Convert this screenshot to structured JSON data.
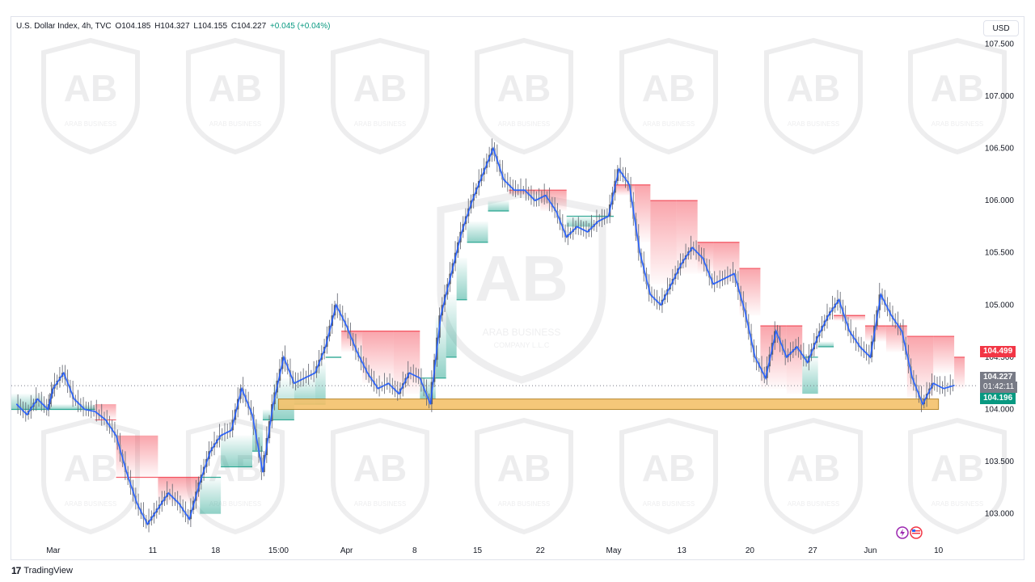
{
  "header": {
    "symbol": "U.S. Dollar Index, 4h, TVC",
    "open": "O104.185",
    "high": "H104.327",
    "low": "L104.155",
    "close": "C104.227",
    "change": "+0.045 (+0.04%)"
  },
  "currency_button": "USD",
  "watermark": {
    "name": "ARAB BUSINESS",
    "sub": "COMPANY L.L.C",
    "monogram": "AB"
  },
  "footer": {
    "logo": "17",
    "brand": "TradingView"
  },
  "price_tags": {
    "resistance": {
      "label": "104.499",
      "color": "#f23645"
    },
    "last_price": {
      "label": "104.227",
      "countdown": "01:42:11",
      "color": "#787b86"
    },
    "support": {
      "label": "104.196",
      "color": "#089981"
    }
  },
  "colors": {
    "up": "#089981",
    "down": "#f23645",
    "line": "#2962ff",
    "zone_fill": "#f5c26b",
    "zone_stroke": "#b07d1a",
    "wick": "#5d606b"
  },
  "chart_data": {
    "type": "line",
    "title": "U.S. Dollar Index, 4h, TVC",
    "y_scale": {
      "min": 102.75,
      "max": 107.75
    },
    "y_ticks": [
      "107.500",
      "107.000",
      "106.500",
      "106.000",
      "105.500",
      "105.000",
      "104.500",
      "104.000",
      "103.500",
      "103.000"
    ],
    "y_tick_values": [
      107.5,
      107.0,
      106.5,
      106.0,
      105.5,
      105.0,
      104.5,
      104.0,
      103.5,
      103.0
    ],
    "x_ticks": [
      "Mar",
      "11",
      "18",
      "15:00",
      "Apr",
      "8",
      "15",
      "22",
      "May",
      "13",
      "20",
      "27",
      "Jun",
      "10"
    ],
    "x_tick_index": [
      0,
      38,
      62,
      86,
      112,
      138,
      162,
      186,
      214,
      240,
      266,
      290,
      312,
      338
    ],
    "x_range": [
      -16,
      352
    ],
    "series": [
      {
        "price": [
          [
            -14,
            104.05
          ],
          [
            -10,
            103.95
          ],
          [
            -6,
            104.1
          ],
          [
            -2,
            104.0
          ],
          [
            0,
            104.2
          ],
          [
            4,
            104.35
          ],
          [
            8,
            104.1
          ],
          [
            12,
            104.0
          ],
          [
            16,
            103.98
          ],
          [
            20,
            103.9
          ],
          [
            24,
            103.75
          ],
          [
            28,
            103.4
          ],
          [
            32,
            103.1
          ],
          [
            36,
            102.9
          ],
          [
            40,
            103.05
          ],
          [
            44,
            103.2
          ],
          [
            48,
            103.1
          ],
          [
            52,
            102.95
          ],
          [
            56,
            103.3
          ],
          [
            60,
            103.6
          ],
          [
            64,
            103.75
          ],
          [
            68,
            103.8
          ],
          [
            72,
            104.2
          ],
          [
            76,
            103.95
          ],
          [
            80,
            103.4
          ],
          [
            84,
            104.05
          ],
          [
            88,
            104.5
          ],
          [
            92,
            104.25
          ],
          [
            96,
            104.3
          ],
          [
            100,
            104.35
          ],
          [
            104,
            104.6
          ],
          [
            108,
            105.0
          ],
          [
            112,
            104.8
          ],
          [
            116,
            104.55
          ],
          [
            120,
            104.35
          ],
          [
            124,
            104.2
          ],
          [
            128,
            104.25
          ],
          [
            132,
            104.15
          ],
          [
            136,
            104.35
          ],
          [
            140,
            104.3
          ],
          [
            144,
            104.05
          ],
          [
            148,
            104.9
          ],
          [
            152,
            105.3
          ],
          [
            156,
            105.7
          ],
          [
            160,
            106.0
          ],
          [
            164,
            106.25
          ],
          [
            168,
            106.5
          ],
          [
            172,
            106.2
          ],
          [
            176,
            106.1
          ],
          [
            180,
            106.1
          ],
          [
            184,
            106.0
          ],
          [
            188,
            106.05
          ],
          [
            192,
            105.9
          ],
          [
            196,
            105.65
          ],
          [
            200,
            105.75
          ],
          [
            204,
            105.7
          ],
          [
            208,
            105.8
          ],
          [
            212,
            105.85
          ],
          [
            216,
            106.3
          ],
          [
            220,
            106.15
          ],
          [
            224,
            105.5
          ],
          [
            228,
            105.1
          ],
          [
            232,
            105.0
          ],
          [
            236,
            105.2
          ],
          [
            240,
            105.4
          ],
          [
            244,
            105.55
          ],
          [
            248,
            105.45
          ],
          [
            252,
            105.2
          ],
          [
            256,
            105.25
          ],
          [
            260,
            105.3
          ],
          [
            264,
            104.95
          ],
          [
            268,
            104.5
          ],
          [
            272,
            104.3
          ],
          [
            276,
            104.75
          ],
          [
            280,
            104.5
          ],
          [
            284,
            104.6
          ],
          [
            288,
            104.45
          ],
          [
            292,
            104.7
          ],
          [
            296,
            104.9
          ],
          [
            300,
            105.05
          ],
          [
            304,
            104.75
          ],
          [
            308,
            104.6
          ],
          [
            312,
            104.5
          ],
          [
            316,
            105.1
          ],
          [
            320,
            104.9
          ],
          [
            324,
            104.75
          ],
          [
            328,
            104.3
          ],
          [
            332,
            104.05
          ],
          [
            336,
            104.25
          ],
          [
            340,
            104.2
          ],
          [
            344,
            104.23
          ]
        ]
      }
    ],
    "trail_steps": [
      [
        -16,
        104.0,
        104.15,
        "up"
      ],
      [
        -4,
        104.0,
        104.05,
        "up"
      ],
      [
        16,
        103.9,
        104.05,
        "down"
      ],
      [
        24,
        103.35,
        103.75,
        "down"
      ],
      [
        40,
        103.35,
        103.1,
        "down"
      ],
      [
        56,
        103.35,
        103.0,
        "up"
      ],
      [
        64,
        103.45,
        103.75,
        "up"
      ],
      [
        76,
        103.6,
        103.9,
        "up"
      ],
      [
        80,
        103.9,
        104.0,
        "up"
      ],
      [
        84,
        103.9,
        104.3,
        "up"
      ],
      [
        92,
        104.05,
        104.3,
        "up"
      ],
      [
        100,
        104.05,
        104.45,
        "up"
      ],
      [
        104,
        104.5,
        104.5,
        "up"
      ],
      [
        110,
        104.75,
        104.55,
        "down"
      ],
      [
        118,
        104.75,
        104.25,
        "down"
      ],
      [
        130,
        104.75,
        104.15,
        "down"
      ],
      [
        140,
        104.3,
        104.1,
        "up"
      ],
      [
        146,
        104.3,
        104.9,
        "up"
      ],
      [
        150,
        104.5,
        105.1,
        "up"
      ],
      [
        154,
        105.05,
        105.45,
        "up"
      ],
      [
        158,
        105.6,
        105.8,
        "up"
      ],
      [
        166,
        105.9,
        106.0,
        "up"
      ],
      [
        174,
        106.1,
        106.05,
        "down"
      ],
      [
        178,
        106.1,
        106.05,
        "down"
      ],
      [
        186,
        106.1,
        105.9,
        "down"
      ],
      [
        196,
        105.85,
        105.75,
        "up"
      ],
      [
        206,
        105.85,
        105.85,
        "up"
      ],
      [
        214,
        106.15,
        106.05,
        "down"
      ],
      [
        222,
        106.15,
        105.6,
        "down"
      ],
      [
        228,
        106.0,
        105.2,
        "down"
      ],
      [
        238,
        106.0,
        105.3,
        "down"
      ],
      [
        246,
        105.6,
        105.3,
        "down"
      ],
      [
        252,
        105.6,
        105.2,
        "down"
      ],
      [
        262,
        105.35,
        104.9,
        "down"
      ],
      [
        270,
        104.8,
        104.2,
        "down"
      ],
      [
        280,
        104.8,
        104.15,
        "down"
      ],
      [
        286,
        104.5,
        104.15,
        "up"
      ],
      [
        292,
        104.6,
        104.65,
        "up"
      ],
      [
        298,
        104.9,
        104.85,
        "down"
      ],
      [
        310,
        104.8,
        104.65,
        "down"
      ],
      [
        318,
        104.8,
        104.55,
        "down"
      ],
      [
        326,
        104.7,
        104.1,
        "down"
      ],
      [
        336,
        104.7,
        104.35,
        "down"
      ],
      [
        344,
        104.5,
        104.2,
        "down"
      ]
    ],
    "support_zone": {
      "from_index": 86,
      "to_index": 338,
      "y_high": 104.1,
      "y_low": 104.0
    },
    "last_price": 104.227
  }
}
